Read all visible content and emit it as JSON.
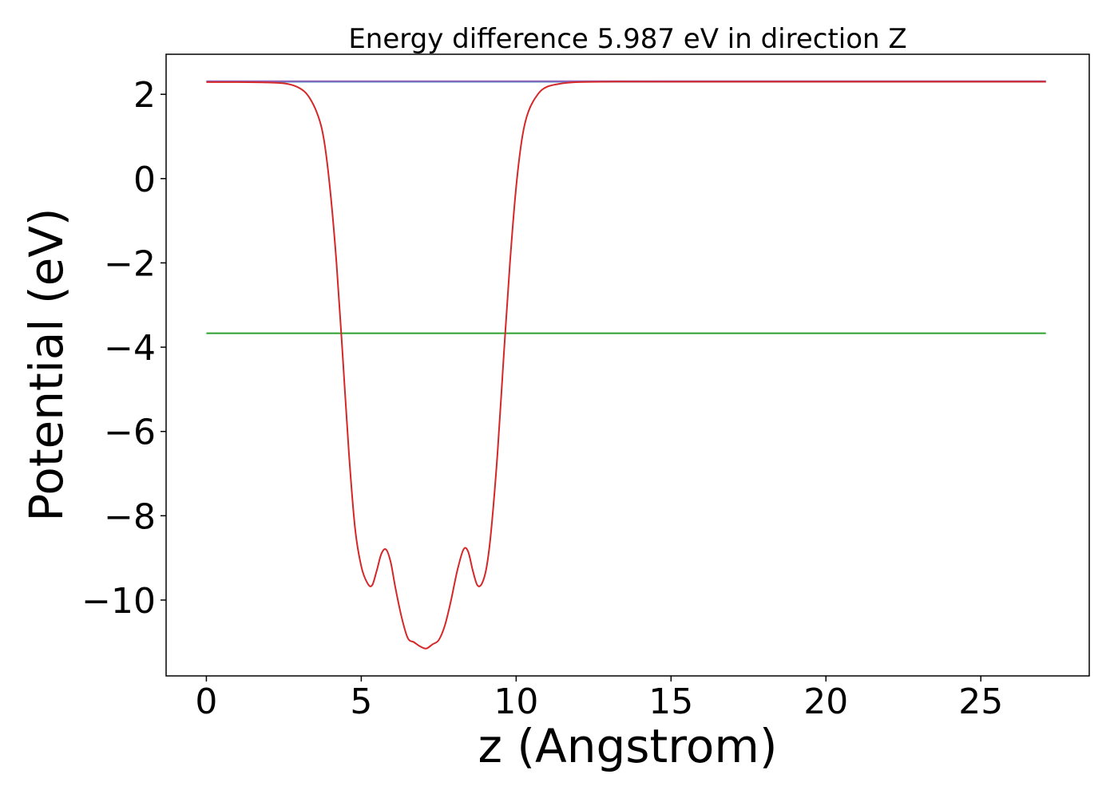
{
  "chart_data": {
    "type": "line",
    "title": "Energy difference 5.987 eV in direction Z",
    "xlabel": "z (Angstrom)",
    "ylabel": "Potential (eV)",
    "xlim": [
      -1.3,
      28.5
    ],
    "ylim": [
      -11.8,
      2.95
    ],
    "xticks": [
      0,
      5,
      10,
      15,
      20,
      25
    ],
    "yticks": [
      2,
      0,
      -2,
      -4,
      -6,
      -8,
      -10
    ],
    "ytick_labels": [
      "2",
      "0",
      "−2",
      "−4",
      "−6",
      "−8",
      "−10"
    ],
    "grid": false,
    "series": [
      {
        "color": "#1f77b4",
        "x": [
          0,
          27.1
        ],
        "y": [
          2.3,
          2.3
        ]
      },
      {
        "color": "#2ca02c",
        "x": [
          0,
          27.1
        ],
        "y": [
          -3.67,
          -3.67
        ]
      },
      {
        "color": "#9467bd",
        "x": [
          0,
          27.1
        ],
        "y": [
          2.31,
          2.31
        ]
      },
      {
        "color": "#d62728",
        "x": [
          0,
          1.0,
          2.0,
          2.6,
          3.0,
          3.3,
          3.6,
          3.8,
          4.0,
          4.2,
          4.4,
          4.6,
          4.8,
          5.0,
          5.2,
          5.35,
          5.5,
          5.65,
          5.8,
          5.95,
          6.1,
          6.3,
          6.5,
          6.7,
          6.9,
          7.1,
          7.3,
          7.5,
          7.7,
          7.9,
          8.1,
          8.3,
          8.45,
          8.6,
          8.75,
          8.9,
          9.05,
          9.2,
          9.4,
          9.6,
          9.8,
          10.0,
          10.2,
          10.4,
          10.7,
          11.0,
          11.5,
          12.0,
          13.0,
          15.0,
          20.0,
          27.1
        ],
        "y": [
          2.29,
          2.29,
          2.28,
          2.25,
          2.15,
          1.95,
          1.5,
          0.9,
          -0.3,
          -2.0,
          -4.2,
          -6.5,
          -8.3,
          -9.2,
          -9.6,
          -9.65,
          -9.3,
          -8.9,
          -8.8,
          -9.1,
          -9.7,
          -10.4,
          -10.9,
          -11.0,
          -11.1,
          -11.15,
          -11.05,
          -10.95,
          -10.6,
          -10.0,
          -9.3,
          -8.8,
          -8.85,
          -9.3,
          -9.65,
          -9.6,
          -9.2,
          -8.3,
          -6.5,
          -4.2,
          -2.0,
          -0.2,
          1.0,
          1.6,
          2.0,
          2.18,
          2.26,
          2.29,
          2.3,
          2.3,
          2.3,
          2.3
        ]
      }
    ]
  }
}
